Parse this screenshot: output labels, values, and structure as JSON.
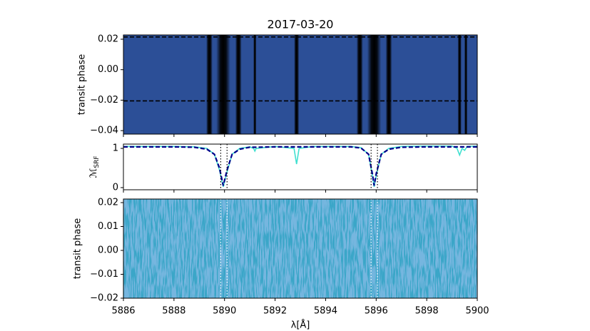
{
  "chart_data": [
    {
      "type": "heatmap",
      "title": "2017-03-20",
      "ylabel": "transit phase",
      "xlim": [
        5886,
        5900
      ],
      "ylim": [
        -0.0423,
        0.0228
      ],
      "yticks": [
        0.02,
        {
          "value": 0,
          "label": "0.00"
        },
        {
          "value": -0.02,
          "label": "−0.02"
        },
        {
          "value": -0.04,
          "label": "−0.04"
        }
      ],
      "background": "#2c4f97",
      "features": [
        {
          "x": 5889.95,
          "width": 0.55,
          "intensity": 1
        },
        {
          "x": 5895.92,
          "width": 0.55,
          "intensity": 1
        },
        {
          "x": 5889.4,
          "width": 0.25,
          "intensity": 0.35
        },
        {
          "x": 5890.55,
          "width": 0.25,
          "intensity": 0.3
        },
        {
          "x": 5891.2,
          "width": 0.12,
          "intensity": 0.45
        },
        {
          "x": 5892.85,
          "width": 0.2,
          "intensity": 0.75
        },
        {
          "x": 5895.35,
          "width": 0.25,
          "intensity": 0.35
        },
        {
          "x": 5896.5,
          "width": 0.25,
          "intensity": 0.3
        },
        {
          "x": 5899.3,
          "width": 0.15,
          "intensity": 0.7
        },
        {
          "x": 5899.55,
          "width": 0.12,
          "intensity": 0.5
        }
      ],
      "hlines": [
        0.0215,
        -0.0205
      ],
      "hline_color": "#000000"
    },
    {
      "type": "line",
      "ylabel": "ℳ",
      "ylabel_sub": "SRF",
      "xlim": [
        5886,
        5900
      ],
      "ylim": [
        -0.055,
        1.11
      ],
      "yticks": [
        0,
        1
      ],
      "x": [
        5886,
        5887,
        5888,
        5888.8,
        5889.3,
        5889.6,
        5889.8,
        5889.95,
        5890.1,
        5890.3,
        5890.6,
        5891,
        5891.15,
        5891.2,
        5891.25,
        5892,
        5892.75,
        5892.85,
        5892.95,
        5893.5,
        5894.5,
        5895,
        5895.4,
        5895.7,
        5895.85,
        5895.92,
        5896.0,
        5896.2,
        5896.5,
        5897,
        5898,
        5899,
        5899.2,
        5899.3,
        5899.4,
        5899.5,
        5899.6,
        5900
      ],
      "series": [
        {
          "color": "#40e0d0",
          "linestyle": "solid",
          "values": [
            1.05,
            1.05,
            1.05,
            1.04,
            1.0,
            0.85,
            0.45,
            0.02,
            0.4,
            0.85,
            1.0,
            1.04,
            1.0,
            0.93,
            1.0,
            1.05,
            1.0,
            0.6,
            1.0,
            1.05,
            1.05,
            1.05,
            1.02,
            0.85,
            0.3,
            0.02,
            0.3,
            0.85,
            1.0,
            1.05,
            1.06,
            1.06,
            1.0,
            0.83,
            1.0,
            0.95,
            1.05,
            1.06
          ]
        },
        {
          "color": "#00008b",
          "linestyle": "dashed",
          "values": [
            1.04,
            1.04,
            1.04,
            1.03,
            0.98,
            0.85,
            0.5,
            0.05,
            0.45,
            0.85,
            0.98,
            1.03,
            1.03,
            1.03,
            1.03,
            1.04,
            1.04,
            1.04,
            1.04,
            1.04,
            1.04,
            1.04,
            1.01,
            0.85,
            0.35,
            0.05,
            0.35,
            0.85,
            0.98,
            1.03,
            1.04,
            1.04,
            1.04,
            1.04,
            1.04,
            1.04,
            1.04,
            1.04
          ]
        }
      ],
      "vlines": [
        5889.85,
        5890.1,
        5895.8,
        5896.05
      ],
      "vline_color": "#000000"
    },
    {
      "type": "heatmap",
      "ylabel": "transit phase",
      "xlabel": "λ[Å]",
      "xlim": [
        5886,
        5900
      ],
      "ylim": [
        -0.02,
        0.0215
      ],
      "xticks": [
        5886,
        5888,
        5890,
        5892,
        5894,
        5896,
        5898,
        5900
      ],
      "yticks": [
        0.02,
        0.01,
        {
          "value": 0,
          "label": "0.00"
        },
        {
          "value": -0.01,
          "label": "−0.01"
        },
        {
          "value": -0.02,
          "label": "−0.02"
        }
      ],
      "background": "#3ba6c8",
      "noise_color": "#2f78bd",
      "vlines": [
        5889.85,
        5890.1,
        5895.8,
        5896.05
      ],
      "vline_color": "#ffffff"
    }
  ]
}
